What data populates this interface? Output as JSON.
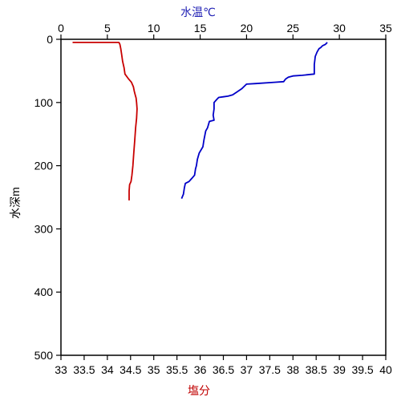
{
  "chart_data": {
    "type": "line",
    "x_axes": {
      "top": {
        "label": "水温℃",
        "label_color": "#1f1fb4",
        "range": [
          0,
          35
        ],
        "ticks": [
          "0",
          "5",
          "10",
          "15",
          "20",
          "25",
          "30",
          "35"
        ]
      },
      "bottom": {
        "label": "塩分",
        "label_color": "#c00000",
        "range": [
          33,
          40
        ],
        "ticks": [
          "33",
          "33.5",
          "34",
          "34.5",
          "35",
          "35.5",
          "36",
          "36.5",
          "37",
          "37.5",
          "38",
          "38.5",
          "39",
          "39.5",
          "40"
        ]
      }
    },
    "y_axis": {
      "label": "水深m",
      "range": [
        0,
        500
      ],
      "inverted": true,
      "ticks": [
        "0",
        "100",
        "200",
        "300",
        "400",
        "500"
      ]
    },
    "grid": false,
    "series": [
      {
        "axis": "top",
        "color": "#0000c8",
        "points": [
          [
            28.7,
            5
          ],
          [
            28.5,
            8
          ],
          [
            28.2,
            10
          ],
          [
            28.0,
            13
          ],
          [
            27.8,
            15
          ],
          [
            27.6,
            20
          ],
          [
            27.4,
            27
          ],
          [
            27.3,
            40
          ],
          [
            27.3,
            55
          ],
          [
            26.0,
            57
          ],
          [
            25.0,
            58
          ],
          [
            24.5,
            60
          ],
          [
            24.2,
            63
          ],
          [
            24.0,
            67
          ],
          [
            23.0,
            68
          ],
          [
            21.0,
            70
          ],
          [
            20.0,
            71
          ],
          [
            19.5,
            78
          ],
          [
            19.0,
            83
          ],
          [
            18.5,
            88
          ],
          [
            18.0,
            90
          ],
          [
            17.5,
            91
          ],
          [
            17.0,
            92
          ],
          [
            16.8,
            95
          ],
          [
            16.5,
            100
          ],
          [
            16.5,
            110
          ],
          [
            16.4,
            120
          ],
          [
            16.5,
            128
          ],
          [
            16.0,
            130
          ],
          [
            15.8,
            140
          ],
          [
            15.6,
            145
          ],
          [
            15.4,
            160
          ],
          [
            15.3,
            170
          ],
          [
            14.9,
            180
          ],
          [
            14.7,
            190
          ],
          [
            14.6,
            200
          ],
          [
            14.5,
            205
          ],
          [
            14.4,
            215
          ],
          [
            14.1,
            220
          ],
          [
            13.8,
            225
          ],
          [
            13.4,
            228
          ],
          [
            13.3,
            235
          ],
          [
            13.2,
            245
          ],
          [
            13.0,
            252
          ]
        ]
      },
      {
        "axis": "bottom",
        "color": "#c80000",
        "points": [
          [
            33.25,
            5
          ],
          [
            33.8,
            5
          ],
          [
            34.1,
            5
          ],
          [
            34.25,
            5
          ],
          [
            34.27,
            8
          ],
          [
            34.29,
            15
          ],
          [
            34.31,
            25
          ],
          [
            34.33,
            35
          ],
          [
            34.36,
            45
          ],
          [
            34.38,
            55
          ],
          [
            34.45,
            62
          ],
          [
            34.52,
            68
          ],
          [
            34.56,
            75
          ],
          [
            34.58,
            82
          ],
          [
            34.6,
            88
          ],
          [
            34.62,
            93
          ],
          [
            34.63,
            100
          ],
          [
            34.64,
            110
          ],
          [
            34.63,
            125
          ],
          [
            34.61,
            140
          ],
          [
            34.59,
            160
          ],
          [
            34.57,
            180
          ],
          [
            34.55,
            200
          ],
          [
            34.53,
            215
          ],
          [
            34.51,
            225
          ],
          [
            34.48,
            230
          ],
          [
            34.47,
            240
          ],
          [
            34.47,
            255
          ]
        ]
      }
    ]
  }
}
